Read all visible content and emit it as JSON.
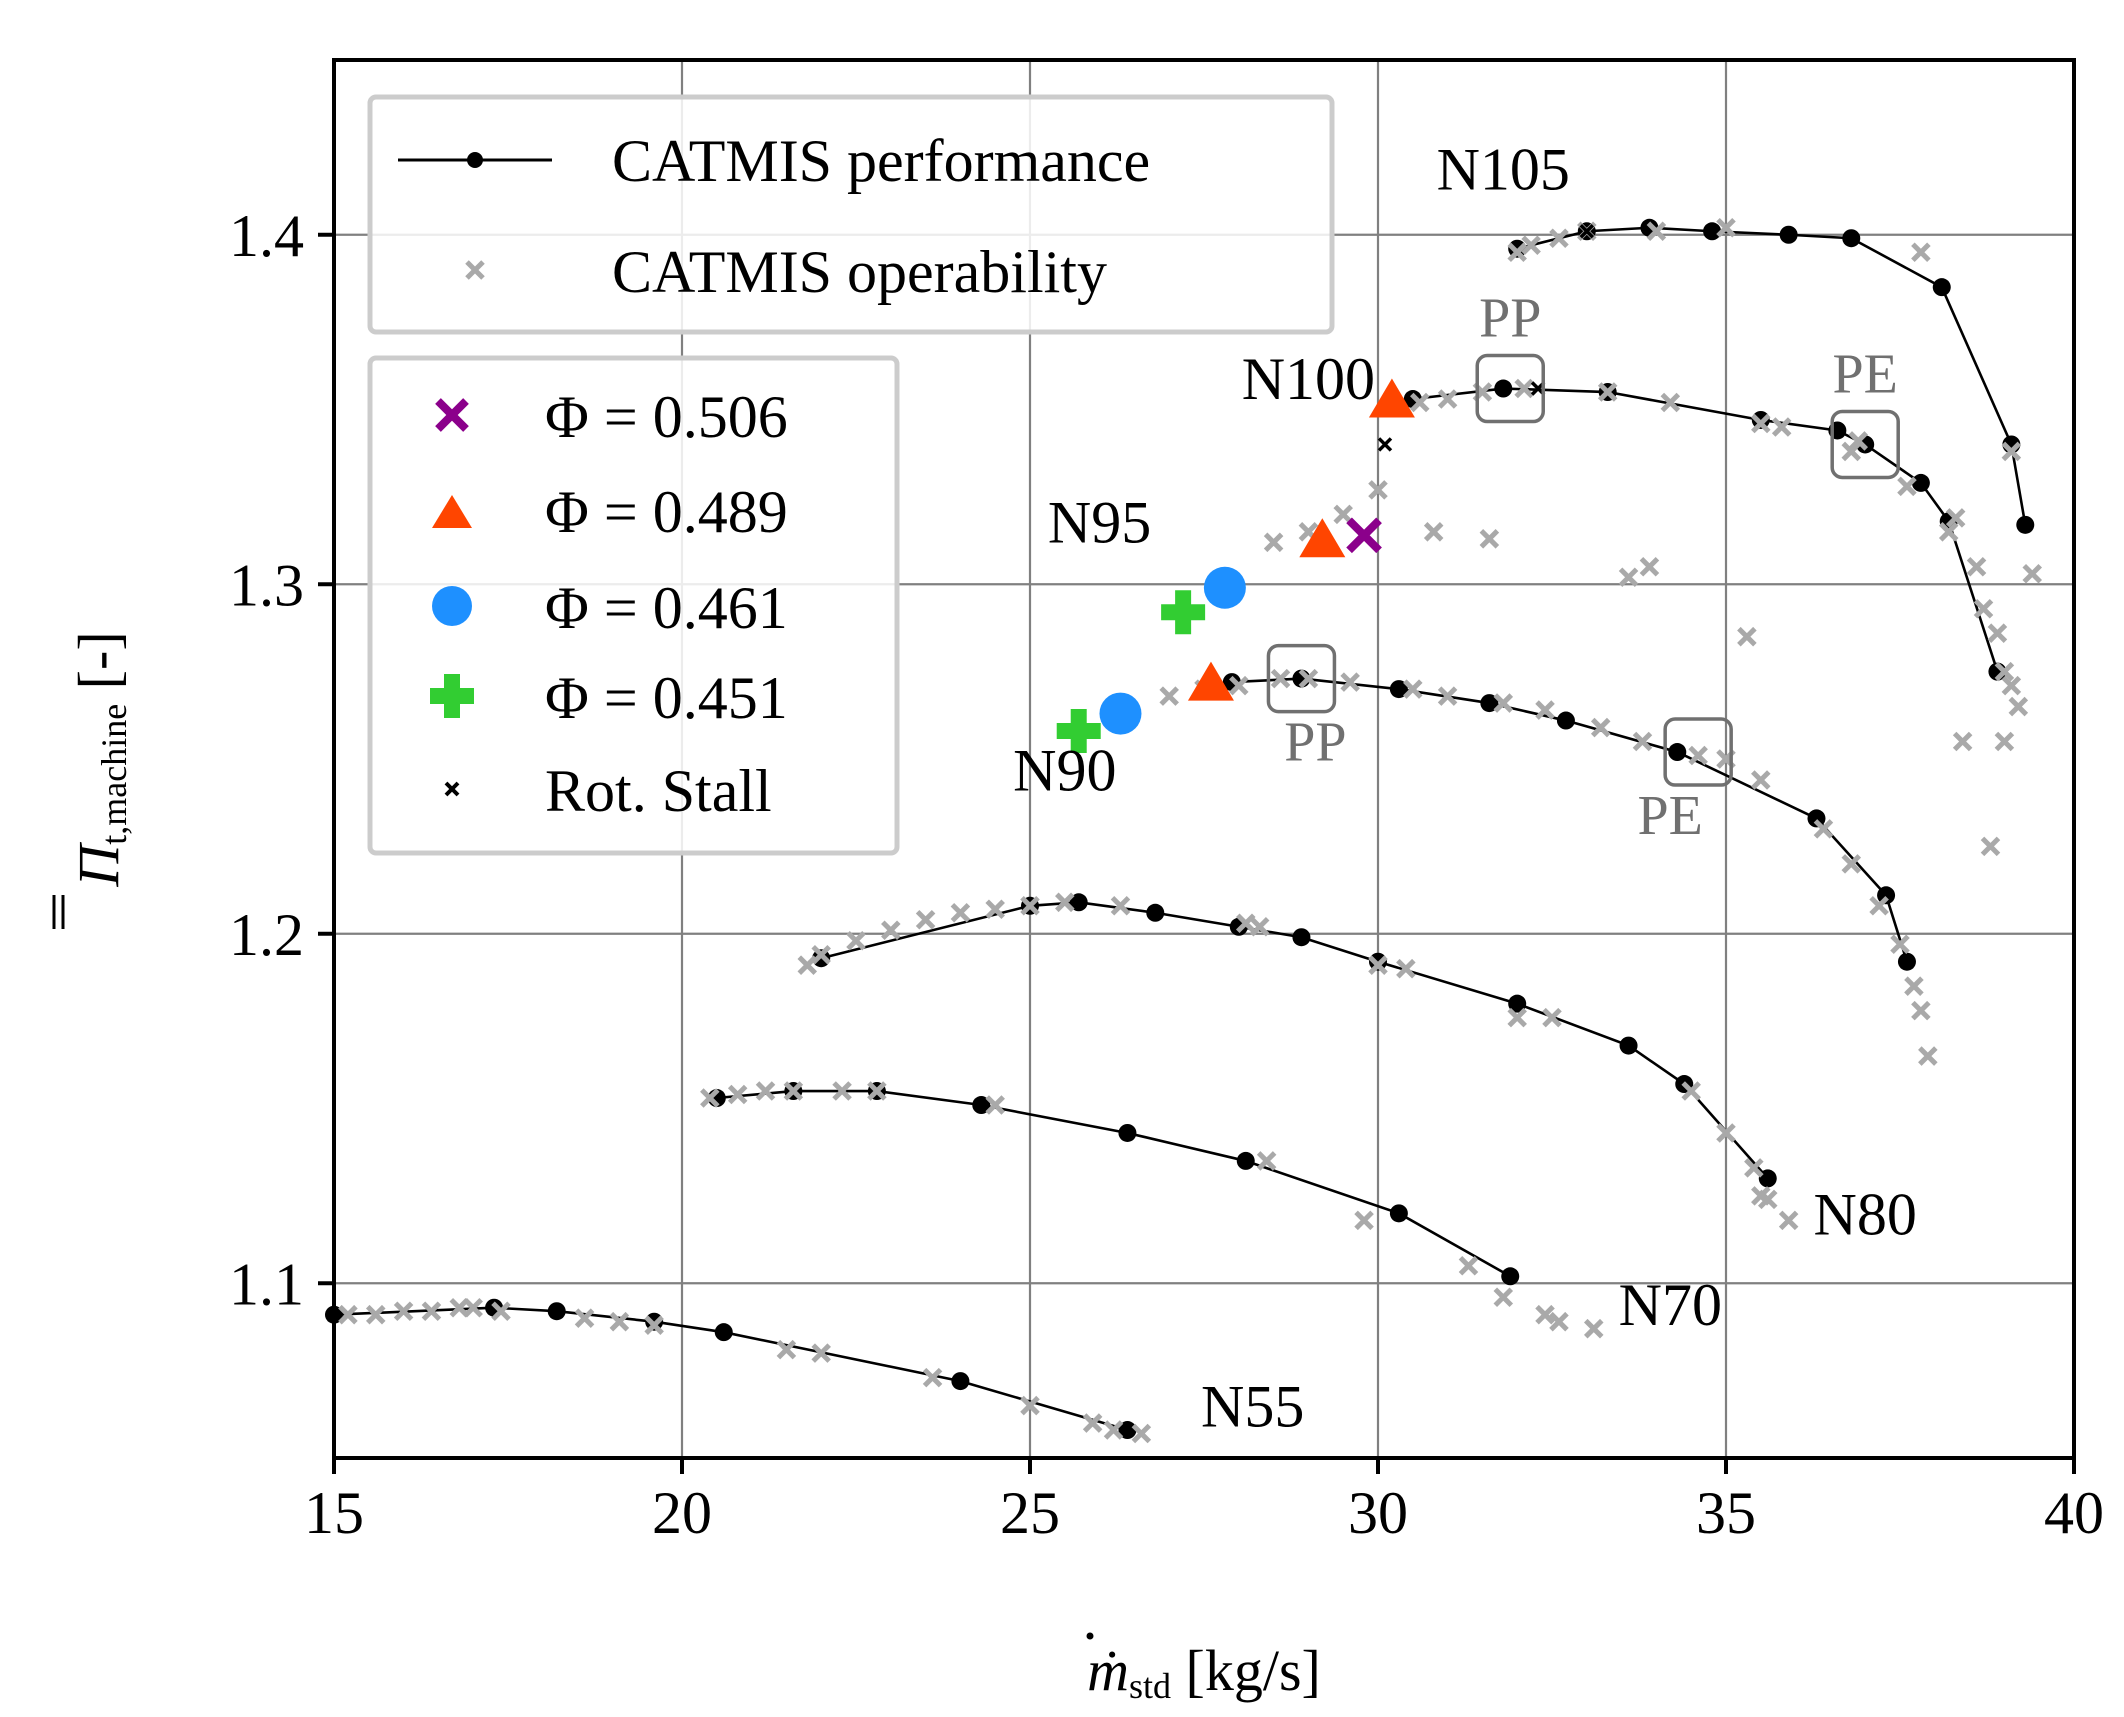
{
  "chart_data": {
    "type": "scatter",
    "xlabel": {
      "main": "ṁ",
      "sub": "std",
      "unit": " [kg/s]"
    },
    "ylabel": {
      "main": "Π",
      "sub": "t,machine",
      "unit": " [-]"
    },
    "xlim": [
      15,
      40
    ],
    "ylim": [
      1.05,
      1.45
    ],
    "x_ticks": [
      "15",
      "20",
      "25",
      "30",
      "35",
      "40"
    ],
    "y_ticks": [
      "1.1",
      "1.2",
      "1.3",
      "1.4"
    ],
    "grid": true,
    "legend_top": [
      {
        "label": "CATMIS performance",
        "marker": "line-dot",
        "color": "#000000"
      },
      {
        "label": "CATMIS operability",
        "marker": "x",
        "color": "#a9a9a9"
      }
    ],
    "legend_phi": [
      {
        "label": "Φ = 0.506",
        "marker": "x-bold",
        "color": "#8b008b"
      },
      {
        "label": "Φ = 0.489",
        "marker": "triangle",
        "color": "#ff4500"
      },
      {
        "label": "Φ = 0.461",
        "marker": "circle",
        "color": "#1e90ff"
      },
      {
        "label": "Φ = 0.451",
        "marker": "plus",
        "color": "#32cd32"
      },
      {
        "label": "Rot. Stall",
        "marker": "x-small",
        "color": "#000000"
      }
    ],
    "speed_lines": [
      {
        "name": "N55",
        "perf_x": [
          15.0,
          17.3,
          18.2,
          19.6,
          20.6,
          24.0,
          26.4
        ],
        "perf_y": [
          1.091,
          1.093,
          1.092,
          1.089,
          1.086,
          1.072,
          1.058
        ]
      },
      {
        "name": "N70",
        "perf_x": [
          20.5,
          21.6,
          22.8,
          24.3,
          26.4,
          28.1,
          30.3,
          31.9
        ],
        "perf_y": [
          1.153,
          1.155,
          1.155,
          1.151,
          1.143,
          1.135,
          1.12,
          1.102
        ]
      },
      {
        "name": "N80",
        "perf_x": [
          22.0,
          25.0,
          25.7,
          26.8,
          28.0,
          28.9,
          30.0,
          32.0,
          33.6,
          34.4,
          35.6
        ],
        "perf_y": [
          1.193,
          1.208,
          1.209,
          1.206,
          1.202,
          1.199,
          1.192,
          1.18,
          1.168,
          1.157,
          1.13
        ]
      },
      {
        "name": "N90",
        "perf_x": [
          27.9,
          28.9,
          30.3,
          31.6,
          32.7,
          34.3,
          36.3,
          37.3,
          37.6
        ],
        "perf_y": [
          1.272,
          1.273,
          1.27,
          1.266,
          1.261,
          1.252,
          1.233,
          1.211,
          1.192
        ]
      },
      {
        "name": "N100",
        "perf_x": [
          30.5,
          31.8,
          33.3,
          35.5,
          36.6,
          37.0,
          37.8,
          38.2,
          38.9
        ],
        "perf_y": [
          1.353,
          1.356,
          1.355,
          1.347,
          1.344,
          1.34,
          1.329,
          1.318,
          1.275
        ]
      },
      {
        "name": "N105",
        "perf_x": [
          32.0,
          33.0,
          33.9,
          34.8,
          35.9,
          36.8,
          38.1,
          39.1,
          39.3
        ],
        "perf_y": [
          1.396,
          1.401,
          1.402,
          1.401,
          1.4,
          1.399,
          1.385,
          1.34,
          1.317
        ]
      }
    ],
    "operability_points": {
      "x": [
        15.2,
        15.6,
        16.0,
        16.4,
        16.8,
        17.0,
        17.4,
        18.6,
        19.1,
        19.6,
        21.5,
        22.0,
        23.6,
        25.0,
        25.9,
        26.2,
        26.6,
        20.4,
        20.8,
        21.2,
        21.6,
        22.3,
        22.8,
        24.5,
        28.4,
        29.8,
        31.3,
        31.8,
        32.4,
        32.6,
        33.1,
        21.8,
        22.0,
        22.5,
        23.0,
        23.5,
        24.0,
        24.5,
        25.0,
        25.5,
        26.3,
        28.1,
        28.3,
        30.0,
        30.4,
        32.0,
        32.5,
        34.5,
        35.0,
        35.4,
        35.5,
        35.6,
        35.9,
        27.0,
        27.5,
        28.0,
        28.6,
        29.0,
        29.6,
        30.5,
        31.0,
        31.8,
        32.4,
        33.2,
        33.8,
        34.6,
        35.0,
        35.5,
        36.4,
        36.8,
        37.2,
        37.5,
        37.7,
        37.8,
        37.9,
        28.5,
        29.0,
        29.5,
        30.0,
        30.6,
        31.0,
        31.5,
        32.1,
        33.3,
        34.2,
        35.5,
        35.8,
        36.8,
        37.6,
        38.3,
        38.2,
        38.6,
        38.7,
        38.9,
        39.0,
        39.1,
        39.0,
        39.2,
        39.4,
        30.8,
        31.6,
        33.6,
        33.9,
        35.3,
        32.0,
        32.2,
        32.6,
        33.0,
        34.0,
        35.0,
        37.8,
        36.9,
        39.1,
        38.4,
        38.8
      ],
      "y": [
        1.091,
        1.091,
        1.092,
        1.092,
        1.093,
        1.093,
        1.092,
        1.09,
        1.089,
        1.088,
        1.081,
        1.08,
        1.073,
        1.065,
        1.06,
        1.058,
        1.057,
        1.153,
        1.154,
        1.155,
        1.155,
        1.155,
        1.155,
        1.151,
        1.135,
        1.118,
        1.105,
        1.096,
        1.091,
        1.089,
        1.087,
        1.191,
        1.194,
        1.198,
        1.201,
        1.204,
        1.206,
        1.207,
        1.208,
        1.209,
        1.208,
        1.203,
        1.202,
        1.191,
        1.19,
        1.176,
        1.176,
        1.155,
        1.143,
        1.133,
        1.125,
        1.124,
        1.118,
        1.268,
        1.27,
        1.271,
        1.273,
        1.273,
        1.272,
        1.27,
        1.268,
        1.266,
        1.264,
        1.259,
        1.255,
        1.251,
        1.25,
        1.244,
        1.23,
        1.22,
        1.208,
        1.197,
        1.185,
        1.178,
        1.165,
        1.312,
        1.315,
        1.32,
        1.327,
        1.352,
        1.353,
        1.355,
        1.356,
        1.355,
        1.352,
        1.346,
        1.345,
        1.338,
        1.328,
        1.319,
        1.315,
        1.305,
        1.293,
        1.286,
        1.275,
        1.271,
        1.255,
        1.265,
        1.303,
        1.315,
        1.313,
        1.302,
        1.305,
        1.285,
        1.395,
        1.397,
        1.399,
        1.401,
        1.401,
        1.402,
        1.395,
        1.341,
        1.338,
        1.255,
        1.225
      ]
    },
    "stall_points": {
      "x": [
        30.1,
        33.0,
        32.3
      ],
      "y": [
        1.34,
        1.401,
        1.356
      ]
    },
    "phi_points": [
      {
        "label": "Φ = 0.506",
        "x": [
          29.8
        ],
        "y": [
          1.314
        ]
      },
      {
        "label": "Φ = 0.489",
        "x": [
          30.2,
          29.2,
          27.6
        ],
        "y": [
          1.352,
          1.312,
          1.271
        ]
      },
      {
        "label": "Φ = 0.461",
        "x": [
          27.8,
          26.3
        ],
        "y": [
          1.299,
          1.263
        ]
      },
      {
        "label": "Φ = 0.451",
        "x": [
          27.2,
          25.7
        ],
        "y": [
          1.292,
          1.258
        ]
      }
    ],
    "marked_points": [
      {
        "label": "PP",
        "x": 31.9,
        "y": 1.356
      },
      {
        "label": "PE",
        "x": 37.0,
        "y": 1.34
      },
      {
        "label": "PP",
        "x": 28.9,
        "y": 1.273
      },
      {
        "label": "PE",
        "x": 34.6,
        "y": 1.252
      }
    ],
    "speed_labels": [
      {
        "text": "N105",
        "x": 31.8,
        "y": 1.413
      },
      {
        "text": "N100",
        "x": 29.0,
        "y": 1.353
      },
      {
        "text": "N95",
        "x": 26.0,
        "y": 1.312
      },
      {
        "text": "N90",
        "x": 25.5,
        "y": 1.241
      },
      {
        "text": "N80",
        "x": 37.0,
        "y": 1.114
      },
      {
        "text": "N70",
        "x": 34.2,
        "y": 1.088
      },
      {
        "text": "N55",
        "x": 28.2,
        "y": 1.059
      }
    ]
  }
}
